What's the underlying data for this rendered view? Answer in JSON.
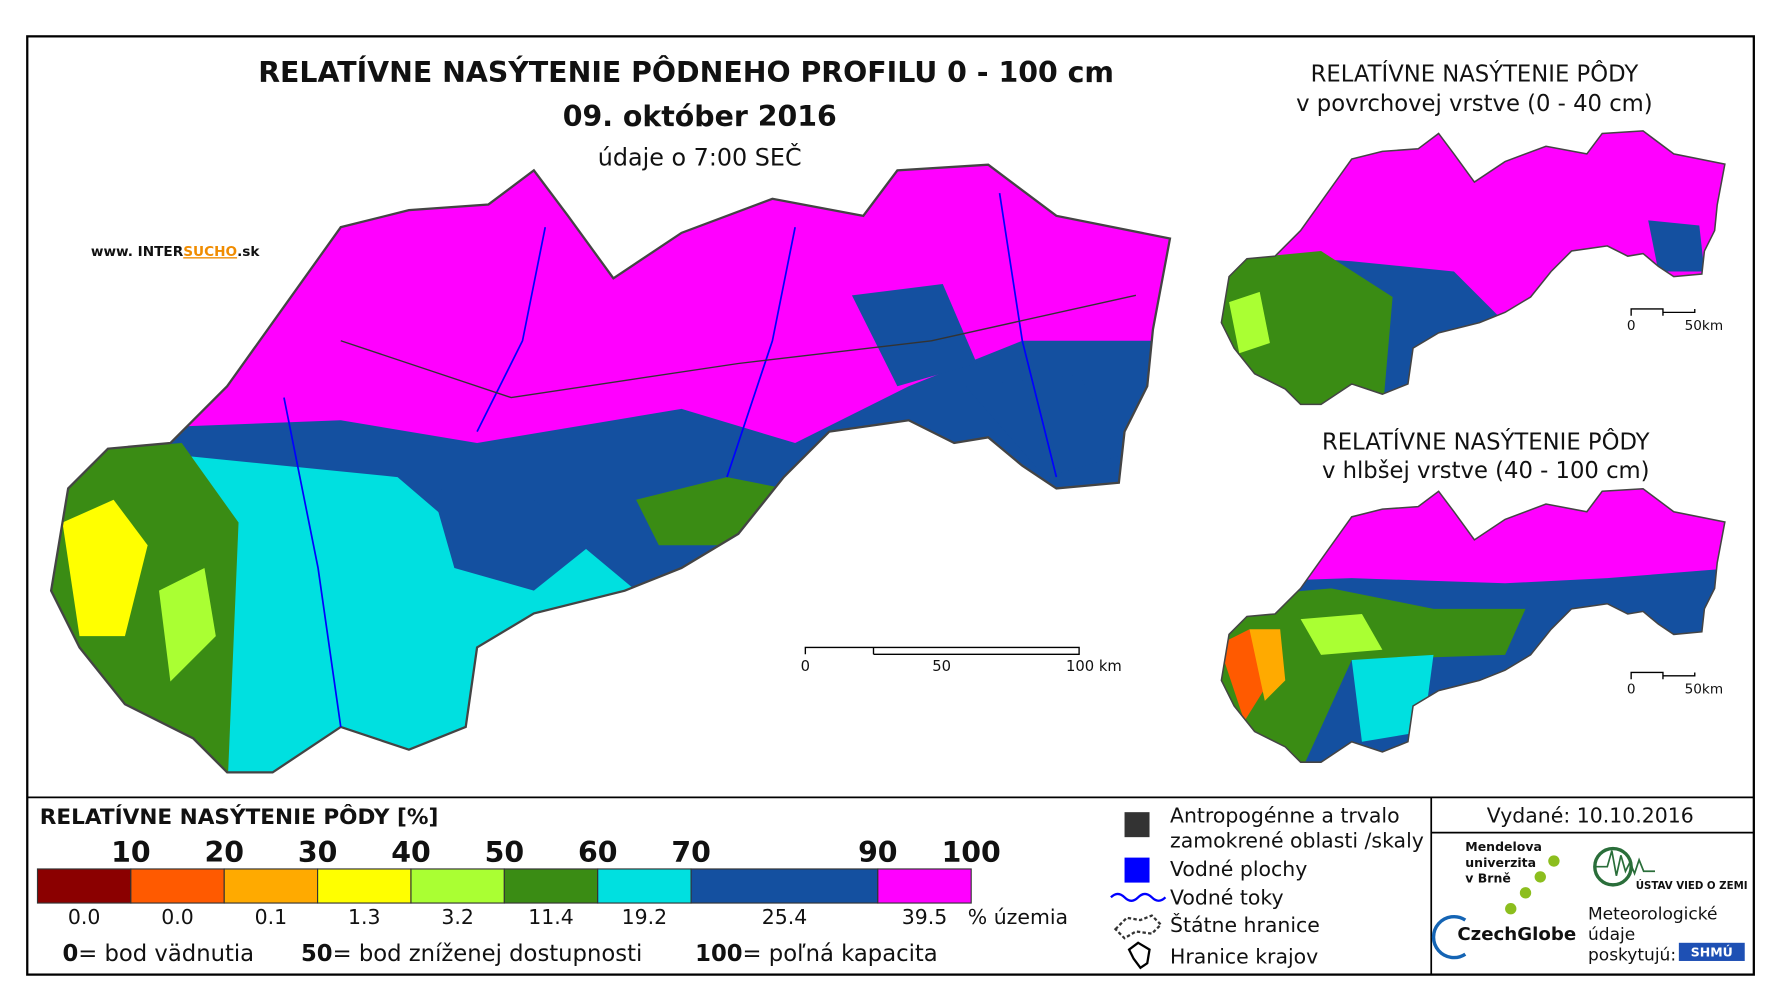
{
  "header": {
    "title": "RELATÍVNE NASÝTENIE PÔDNEHO PROFILU 0 - 100 cm",
    "date": "09. október 2016",
    "time_note": "údaje o 7:00 SEČ",
    "website": [
      "www. INTER",
      "SUCHO",
      ".sk"
    ]
  },
  "main_map": {
    "scale": [
      "0",
      "50",
      "100 km"
    ]
  },
  "insets": [
    {
      "title": [
        "RELATÍVNE NASÝTENIE PÔDY",
        "v povrchovej vrstve (0 - 40 cm)"
      ],
      "scale": [
        "0",
        "50km"
      ]
    },
    {
      "title": [
        "RELATÍVNE NASÝTENIE PÔDY",
        "v hlbšej vrstve (40 - 100 cm)"
      ],
      "scale": [
        "0",
        "50km"
      ]
    }
  ],
  "legend": {
    "title": "RELATÍVNE NASÝTENIE PÔDY [%]",
    "bounds": [
      10,
      20,
      30,
      40,
      50,
      60,
      70,
      90,
      100
    ],
    "classes": [
      {
        "color": "#8b0000",
        "share": "0.0"
      },
      {
        "color": "#ff5a00",
        "share": "0.0"
      },
      {
        "color": "#ffaa00",
        "share": "0.1"
      },
      {
        "color": "#ffff00",
        "share": "1.3"
      },
      {
        "color": "#aaff33",
        "share": "3.2"
      },
      {
        "color": "#3a8c14",
        "share": "11.4"
      },
      {
        "color": "#00e0e0",
        "share": "19.2"
      },
      {
        "color": "#1450a0",
        "share": "25.4"
      },
      {
        "color": "#ff00ff",
        "share": "39.5"
      }
    ],
    "unit": "% územia",
    "notes": [
      {
        "key": "0",
        "text": "= bod vädnutia"
      },
      {
        "key": "50",
        "text": "= bod zníženej dostupnosti"
      },
      {
        "key": "100",
        "text": "= poľná kapacita"
      }
    ]
  },
  "symbols": [
    [
      "Antropogénne a trvalo",
      "zamokrené oblasti /skaly"
    ],
    [
      "Vodné plochy"
    ],
    [
      "Vodné toky"
    ],
    [
      "Štátne hranice"
    ],
    [
      "Hranice krajov"
    ]
  ],
  "footer": {
    "issued": "Vydané: 10.10.2016",
    "mendel": [
      "Mendelova",
      "univerzita",
      "v Brně"
    ],
    "czechglobe": "CzechGlobe",
    "uvz": "ÚSTAV VIED O ZEMI",
    "provider": [
      "Meteorologické",
      "údaje",
      "poskytujú:"
    ],
    "shmu": "SHMÚ"
  }
}
